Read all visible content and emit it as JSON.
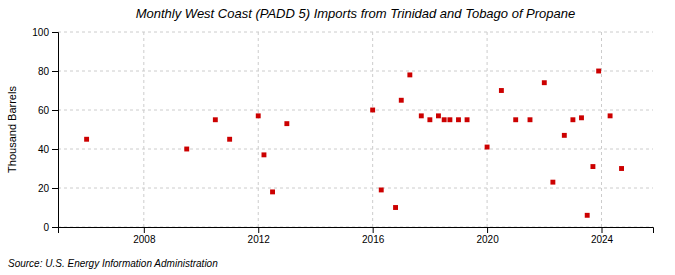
{
  "chart_data": {
    "type": "scatter",
    "title": "Monthly West Coast (PADD 5) Imports from Trinidad and Tobago of Propane",
    "ylabel": "Thousand Barrels",
    "annotations": [
      "Source: U.S. Energy Information Administration"
    ],
    "color": "#cc0000",
    "marker": "square",
    "grid": true,
    "xlim": [
      2005.0,
      2025.8
    ],
    "xticks": [
      2008,
      2012,
      2016,
      2020,
      2024
    ],
    "ylim": [
      0,
      100
    ],
    "yticks": [
      0,
      20,
      40,
      60,
      80,
      100
    ],
    "x": [
      2006.0,
      2009.5,
      2010.5,
      2011.0,
      2012.0,
      2012.2,
      2012.5,
      2013.0,
      2016.0,
      2016.3,
      2016.8,
      2017.0,
      2017.3,
      2017.7,
      2018.0,
      2018.3,
      2018.5,
      2018.7,
      2019.0,
      2019.3,
      2020.0,
      2020.5,
      2021.0,
      2021.5,
      2022.0,
      2022.3,
      2022.7,
      2023.0,
      2023.3,
      2023.5,
      2023.7,
      2023.9,
      2024.3,
      2024.7
    ],
    "values": [
      45,
      40,
      55,
      45,
      57,
      37,
      18,
      53,
      60,
      19,
      10,
      65,
      78,
      57,
      55,
      57,
      55,
      55,
      55,
      55,
      41,
      70,
      55,
      55,
      74,
      23,
      47,
      55,
      56,
      6,
      31,
      80,
      57,
      30
    ]
  }
}
